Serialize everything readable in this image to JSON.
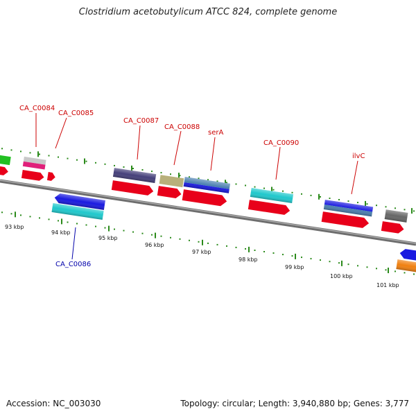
{
  "title": "Clostridium acetobutylicum ATCC 824, complete genome",
  "footer": {
    "accession": "Accession: NC_003030",
    "stats": "Topology: circular; Length: 3,940,880 bp; Genes: 3,777"
  },
  "kbp_labels": [
    "93 kbp",
    "94 kbp",
    "95 kbp",
    "96 kbp",
    "97 kbp",
    "98 kbp",
    "99 kbp",
    "100 kbp",
    "101 kbp"
  ],
  "gene_labels_top": [
    "CA_C0084",
    "CA_C0085",
    "CA_C0087",
    "CA_C0088",
    "serA",
    "CA_C0090",
    "ilvC"
  ],
  "gene_labels_bottom": [
    "CA_C0086"
  ],
  "colors": {
    "backbone": "#7a7a7a",
    "cds": "#e8001a",
    "tick": "#2a8a1a",
    "label_top": "#cc0000",
    "label_bottom": "#0000aa",
    "cyan": "#1fc8cc",
    "blue": "#1a1ae0",
    "navy": "#45407a",
    "khaki": "#b8b07a",
    "steel": "#4a7fb0",
    "gray": "#666666",
    "green": "#22c022",
    "magenta": "#e0207a",
    "orange": "#f08010"
  },
  "icons": [
    "red-cds-arrow",
    "feature-bar"
  ]
}
